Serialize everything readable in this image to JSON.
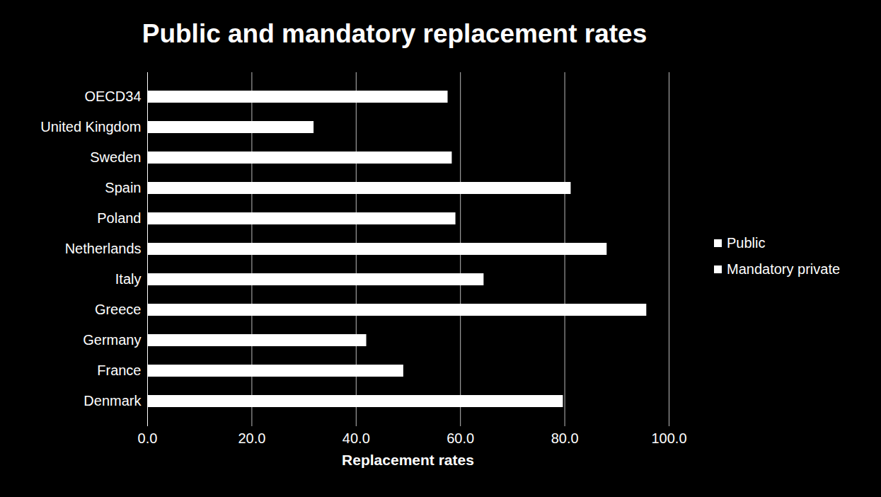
{
  "chart_data": {
    "type": "bar",
    "orientation": "horizontal",
    "stacked": true,
    "title": "Public and mandatory replacement rates",
    "x_label": "Replacement rates",
    "categories": [
      "OECD34",
      "United Kingdom",
      "Sweden",
      "Spain",
      "Poland",
      "Netherlands",
      "Italy",
      "Greece",
      "Germany",
      "France",
      "Denmark"
    ],
    "series": [
      {
        "name": "Public",
        "color": "#ffffff",
        "values": [
          57.6,
          31.9,
          58.4,
          81.2,
          59.1,
          88.1,
          64.5,
          95.7,
          42.0,
          49.1,
          79.7
        ]
      },
      {
        "name": "Mandatory private",
        "color": "#ffffff",
        "values": [
          null,
          null,
          null,
          null,
          null,
          null,
          null,
          null,
          null,
          null,
          null
        ]
      }
    ],
    "xlim": [
      0,
      100
    ],
    "xticks": [
      {
        "value": 0,
        "label": "0.0"
      },
      {
        "value": 20,
        "label": "20.0"
      },
      {
        "value": 40,
        "label": "40.0"
      },
      {
        "value": 60,
        "label": "60.0"
      },
      {
        "value": 80,
        "label": "80.0"
      },
      {
        "value": 100,
        "label": "100.0"
      }
    ],
    "grid": true,
    "legend": "right"
  }
}
